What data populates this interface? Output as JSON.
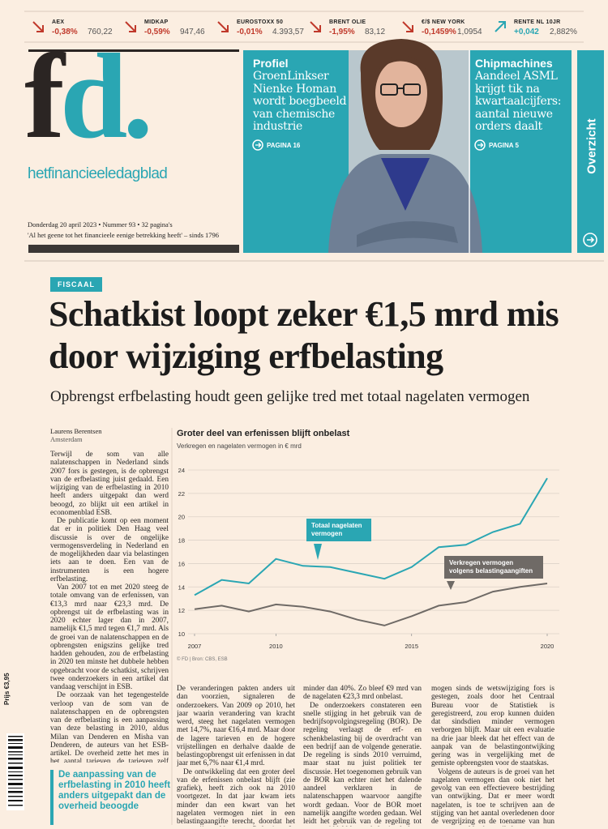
{
  "ticker": [
    {
      "name": "AEX",
      "change": "-0,38%",
      "value": "760,22",
      "direction": "down"
    },
    {
      "name": "MIDKAP",
      "change": "-0,59%",
      "value": "947,46",
      "direction": "down"
    },
    {
      "name": "EUROSTOXX 50",
      "change": "-0,01%",
      "value": "4.393,57",
      "direction": "down"
    },
    {
      "name": "BRENT OLIE",
      "change": "-1,95%",
      "value": "83,12",
      "direction": "down"
    },
    {
      "name": "€/$ NEW YORK",
      "change": "-0,1459%",
      "value": "1,0954",
      "direction": "down"
    },
    {
      "name": "RENTE NL 10JR",
      "change": "+0,042",
      "value": "2,882%",
      "direction": "up"
    }
  ],
  "masthead": {
    "logo": "fd.",
    "name": "hetfinancieeledagblad",
    "dateline": "Donderdag 20 april 2023 • Nummer 93 • 32 pagina's",
    "motto": "'Al het geene tot het financieele eenige betrekking heeft' – sinds 1796"
  },
  "teasers": [
    {
      "label": "Profiel",
      "text": "GroenLinkser Nienke Homan wordt boegbeeld van chemische industrie",
      "page": "PAGINA 16"
    },
    {
      "label": "Chipmachines",
      "text": "Aandeel ASML krijgt tik na kwartaalcijfers: aantal nieuwe orders daalt",
      "page": "PAGINA 5"
    }
  ],
  "side_tab": "Overzicht",
  "article": {
    "section": "FISCAAL",
    "headline": "Schatkist loopt zeker €1,5 mrd mis door wijziging erfbelasting",
    "subhead": "Opbrengst erfbelasting houdt geen gelijke tred met totaal nagelaten vermogen",
    "author": "Laurens Berentsen",
    "location": "Amsterdam",
    "column1": [
      "Terwijl de som van alle nalatenschappen in Nederland sinds 2007 fors is gestegen, is de opbrengst van de erfbelasting juist gedaald. Een wijziging van de erfbelasting in 2010 heeft anders uitgepakt dan werd beoogd, zo blijkt uit een artikel in economenblad ESB.",
      "De publicatie komt op een moment dat er in politiek Den Haag veel discussie is over de ongelijke vermogensverdeling in Nederland en de mogelijkheden daar via belastingen iets aan te doen. Een van de instrumenten is een hogere erfbelasting.",
      "Van 2007 tot en met 2020 steeg de totale omvang van de erfenissen, van €13,3 mrd naar €23,3 mrd. De opbrengst uit de erfbelasting was in 2020 echter lager dan in 2007, namelijk €1,5 mrd tegen €1,7 mrd. Als de groei van de nalatenschappen en de opbrengsten enigszins gelijke tred hadden gehouden, zou de erfbelasting in 2020 ten minste het dubbele hebben opgebracht voor de schatkist, schrijven twee onderzoekers in een artikel dat vandaag verschijnt in ESB.",
      "De oorzaak van het tegengestelde verloop van de som van de nalatenschappen en de opbrengsten van de erfbelasting is een aanpassing van deze belasting in 2010, aldus Milan van Denderen en Misha van Denderen, de auteurs van het ESB-artikel. De overheid zette het mes in het aantal tarieven, de tarieven zelf gingen omlaag, en er kwamen meer vrijstellingen. Doel was het bestrijden van belastingontwijking, onder meer via trusts en stichtingen waarin erflaters hun vermogen verstopten."
    ],
    "quote": "De aanpassing van de erfbelasting in 2010 heeft anders uitgepakt dan de overheid beoogde",
    "column2": [
      "De veranderingen pakten anders uit dan voorzien, signaleren de onderzoekers. Van 2009 op 2010, het jaar waarin verandering van kracht werd, steeg het nagelaten vermogen met 14,7%, naar €16,4 mrd. Maar door de lagere tarieven en de hogere vrijstellingen en derhalve daalde de belastingopbrengst uit erfenissen in dat jaar met 6,7% naar €1,4 mrd.",
      "De ontwikkeling dat een groter deel van de erfenissen onbelast blijft (zie grafiek), heeft zich ook na 2010 voortgezet. In dat jaar kwam iets minder dan een kwart van het nagelaten vermogen niet in een belastingaangifte terecht, doordat het was vrijgesteld van erfbelasting. In 2020 was dat aandeel opgelopen tot iets"
    ],
    "column3": [
      "minder dan 40%. Zo bleef €9 mrd van de nagelaten €23,3 mrd onbelast.",
      "De onderzoekers constateren een snelle stijging in het gebruik van de bedrijfsopvolgingsregeling (BOR). De regeling verlaagt de erf- en schenkbelasting bij de overdracht van een bedrijf aan de volgende generatie. De regeling is sinds 2010 verruimd, maar staat nu juist politiek ter discussie. Het toegenomen gebruik van de BOR kan echter niet het dalende aandeel verklaren in de nalatenschappen waarvoor aangifte wordt gedaan. Voor de BOR moet namelijk aangifte worden gedaan. Wel leidt het gebruik van de regeling tot een gemiddeld lagere belastingdruk op erfenissen.",
      "Het feit dat het totale nagelaten ver-"
    ],
    "column4": [
      "mogen sinds de wetswijziging fors is gestegen, zoals door het Centraal Bureau voor de Statistiek is geregistreerd, zou erop kunnen duiden dat sindsdien minder vermogen verborgen blijft. Maar uit een evaluatie na drie jaar bleek dat het effect van de aanpak van de belastingontwijking gering was in vergelijking met de gemiste opbrengsten voor de staatskas.",
      "Volgens de auteurs is de groei van het nagelaten vermogen dan ook niet het gevolg van een effectievere bestrijding van ontwijking. Dat er meer wordt nagelaten, is toe te schrijven aan de stijging van het aantal overledenen door de vergrijzing en de toename van hun vermogen, aldus het artikel."
    ]
  },
  "price": "Prijs €3,95",
  "chart_data": {
    "type": "line",
    "title": "Groter deel van erfenissen blijft onbelast",
    "subtitle": "Verkregen en nagelaten vermogen in € mrd",
    "source": "© FD | Bron: CBS, ESB",
    "x": [
      2007,
      2008,
      2009,
      2010,
      2011,
      2012,
      2013,
      2014,
      2015,
      2016,
      2017,
      2018,
      2019,
      2020
    ],
    "xlim": [
      2007,
      2020
    ],
    "xticks": [
      2007,
      2010,
      2015,
      2020
    ],
    "ylim": [
      10,
      24
    ],
    "yticks": [
      10,
      12,
      14,
      16,
      18,
      20,
      22,
      24
    ],
    "grid": true,
    "series": [
      {
        "name": "Totaal nagelaten vermogen",
        "color": "#2aa6b3",
        "values": [
          13.3,
          14.6,
          14.3,
          16.4,
          15.8,
          15.7,
          15.2,
          14.7,
          15.7,
          17.4,
          17.6,
          18.7,
          19.4,
          23.3
        ]
      },
      {
        "name": "Verkregen vermogen volgens belastingaangiften",
        "color": "#6f6a66",
        "values": [
          12.1,
          12.4,
          11.9,
          12.5,
          12.3,
          11.9,
          11.2,
          10.7,
          11.5,
          12.4,
          12.7,
          13.6,
          14.0,
          14.3
        ]
      }
    ]
  }
}
